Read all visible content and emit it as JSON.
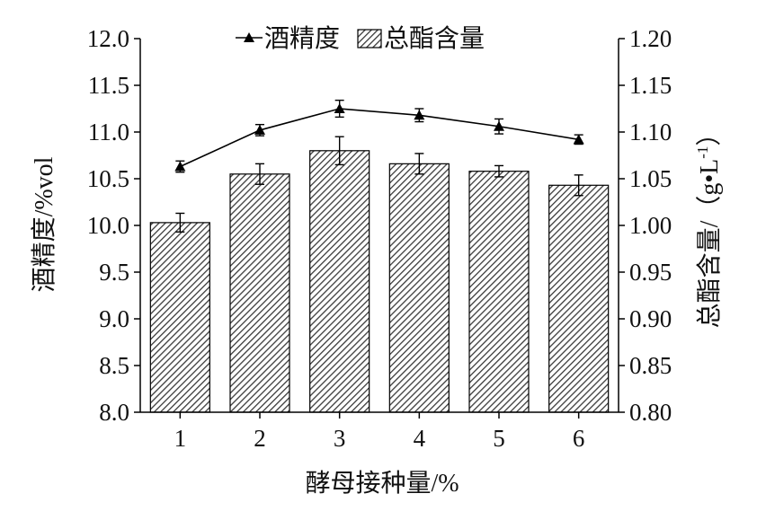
{
  "chart_data": {
    "type": "bar",
    "xlabel": "酵母接种量/%",
    "categories": [
      "1",
      "2",
      "3",
      "4",
      "5",
      "6"
    ],
    "left_axis": {
      "label": "酒精度/%vol",
      "ylim": [
        8.0,
        12.0
      ],
      "ticks": [
        "8.0",
        "8.5",
        "9.0",
        "9.5",
        "10.0",
        "10.5",
        "11.0",
        "11.5",
        "12.0"
      ]
    },
    "right_axis": {
      "label": "总酯含量/（g•L",
      "label_sup": "-1",
      "label_close": "）",
      "ylim": [
        0.8,
        1.2
      ],
      "ticks": [
        "0.80",
        "0.85",
        "0.90",
        "0.95",
        "1.00",
        "1.05",
        "1.10",
        "1.15",
        "1.20"
      ]
    },
    "series": [
      {
        "name": "总酯含量",
        "type": "bar",
        "axis": "right",
        "values": [
          1.003,
          1.055,
          1.08,
          1.066,
          1.058,
          1.043
        ],
        "errors": [
          0.01,
          0.011,
          0.015,
          0.011,
          0.006,
          0.011
        ],
        "fill": "#555555"
      },
      {
        "name": "酒精度",
        "type": "line",
        "axis": "left",
        "marker": "triangle",
        "values": [
          10.63,
          11.02,
          11.25,
          11.18,
          11.06,
          10.92
        ],
        "errors": [
          0.06,
          0.06,
          0.09,
          0.07,
          0.08,
          0.05
        ],
        "color": "#000000"
      }
    ],
    "legend": {
      "position": "top-center"
    }
  }
}
